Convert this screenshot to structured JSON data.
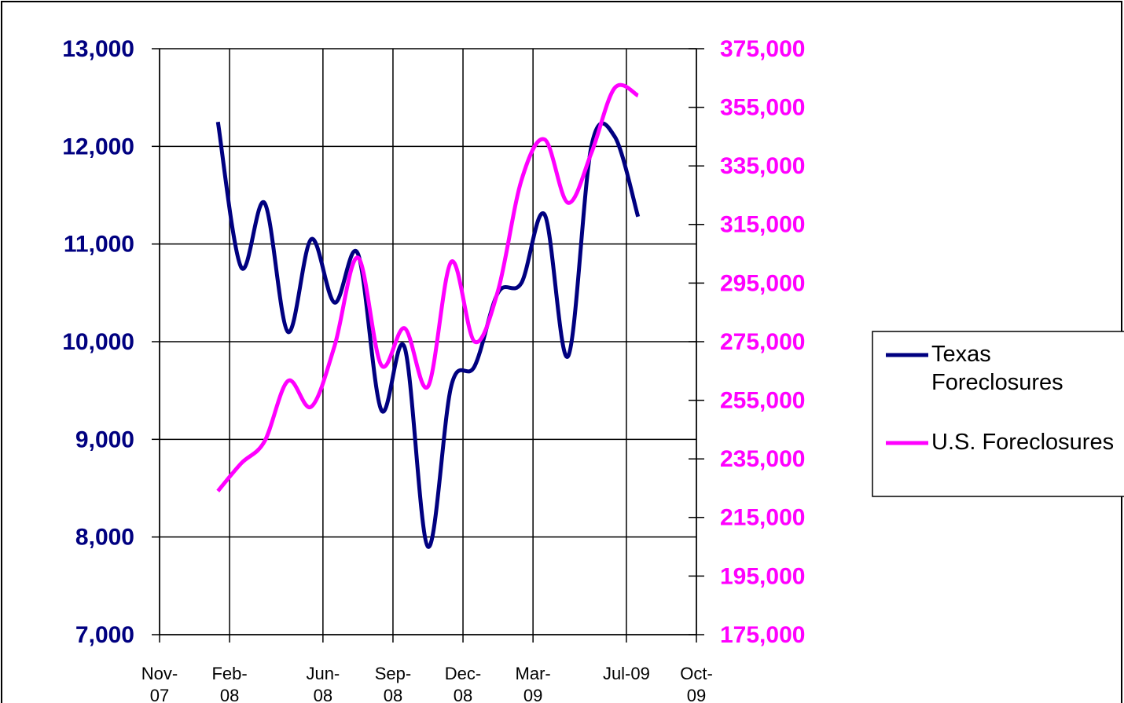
{
  "chart_data": {
    "type": "line",
    "x": [
      "2008-01",
      "2008-02",
      "2008-03",
      "2008-04",
      "2008-05",
      "2008-06",
      "2008-07",
      "2008-08",
      "2008-09",
      "2008-10",
      "2008-11",
      "2008-12",
      "2009-01",
      "2009-02",
      "2009-03",
      "2009-04",
      "2009-05",
      "2009-06",
      "2009-07"
    ],
    "series": [
      {
        "name": "Texas Foreclosures",
        "color": "#000080",
        "values": [
          12250,
          10760,
          11420,
          10100,
          11050,
          10400,
          10900,
          9300,
          9940,
          7900,
          9550,
          9750,
          10500,
          10600,
          11300,
          9850,
          12000,
          12100,
          11280
        ]
      },
      {
        "name": "U.S. Foreclosures",
        "color": "#ff00ff",
        "axis": "y2",
        "values": [
          224000,
          233500,
          241000,
          261600,
          252800,
          273600,
          303700,
          267000,
          279600,
          259700,
          302300,
          275000,
          292400,
          330000,
          344000,
          322400,
          339400,
          361600,
          359000
        ]
      }
    ],
    "xlim": [
      "2007-11",
      "2009-10"
    ],
    "xticks": [
      {
        "value": "2007-11",
        "label": "Nov-07"
      },
      {
        "value": "2008-02",
        "label": "Feb-08"
      },
      {
        "value": "2008-06",
        "label": "Jun-08"
      },
      {
        "value": "2008-09",
        "label": "Sep-08"
      },
      {
        "value": "2008-12",
        "label": "Dec-08"
      },
      {
        "value": "2009-03",
        "label": "Mar-09"
      },
      {
        "value": "2009-07",
        "label": "Jul-09"
      },
      {
        "value": "2009-10",
        "label": "Oct-09"
      }
    ],
    "ylim": [
      7000,
      13000
    ],
    "yticks": [
      {
        "value": 7000,
        "label": "7,000"
      },
      {
        "value": 8000,
        "label": "8,000"
      },
      {
        "value": 9000,
        "label": "9,000"
      },
      {
        "value": 10000,
        "label": "10,000"
      },
      {
        "value": 11000,
        "label": "11,000"
      },
      {
        "value": 12000,
        "label": "12,000"
      },
      {
        "value": 13000,
        "label": "13,000"
      }
    ],
    "y2lim": [
      175000,
      375000
    ],
    "y2ticks": [
      {
        "value": 175000,
        "label": "175,000"
      },
      {
        "value": 195000,
        "label": "195,000"
      },
      {
        "value": 215000,
        "label": "215,000"
      },
      {
        "value": 235000,
        "label": "235,000"
      },
      {
        "value": 255000,
        "label": "255,000"
      },
      {
        "value": 275000,
        "label": "275,000"
      },
      {
        "value": 295000,
        "label": "295,000"
      },
      {
        "value": 315000,
        "label": "315,000"
      },
      {
        "value": 335000,
        "label": "335,000"
      },
      {
        "value": 355000,
        "label": "355,000"
      },
      {
        "value": 375000,
        "label": "375,000"
      }
    ],
    "y_axis_color": "#000080",
    "y2_axis_color": "#ff00ff",
    "grid": true,
    "legend": "right"
  }
}
